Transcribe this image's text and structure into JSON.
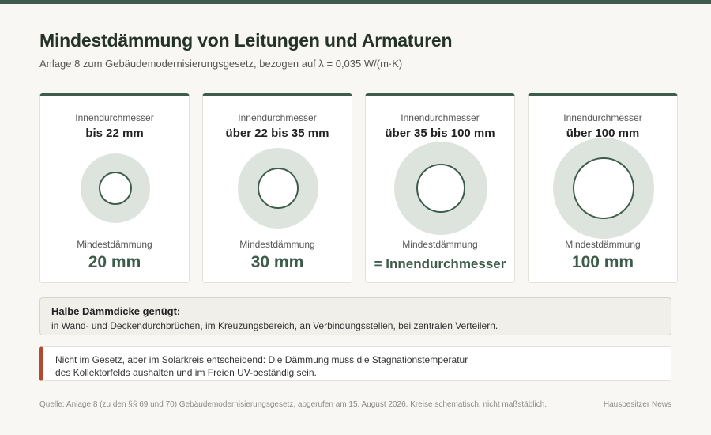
{
  "header": {
    "title": "Mindestdämmung von Leitungen und Armaturen",
    "subtitle": "Anlage 8 zum Gebäudemodernisierungsgesetz, bezogen auf λ = 0,035 W/(m·K)"
  },
  "colors": {
    "accent": "#3d5c4b",
    "ring": "#dde4dd",
    "warning_bar": "#b24a2f"
  },
  "cards": [
    {
      "label_top": "Innendurchmesser",
      "range": "bis 22 mm",
      "label_bottom": "Mindestdämmung",
      "value": "20 mm"
    },
    {
      "label_top": "Innendurchmesser",
      "range": "über 22 bis 35 mm",
      "label_bottom": "Mindestdämmung",
      "value": "30 mm"
    },
    {
      "label_top": "Innendurchmesser",
      "range": "über 35 bis 100 mm",
      "label_bottom": "Mindestdämmung",
      "value": "= Innendurchmesser"
    },
    {
      "label_top": "Innendurchmesser",
      "range": "über 100 mm",
      "label_bottom": "Mindestdämmung",
      "value": "100 mm"
    }
  ],
  "note_half": {
    "heading": "Halbe Dämmdicke genügt:",
    "text": "in Wand- und Deckendurchbrüchen, im Kreuzungsbereich, an Verbindungsstellen, bei zentralen Verteilern."
  },
  "note_solar": {
    "line1": "Nicht im Gesetz, aber im Solarkreis entscheidend: Die Dämmung muss die Stagnationstemperatur",
    "line2": "des Kollektorfelds aushalten und im Freien UV-beständig sein."
  },
  "footer": {
    "source": "Quelle: Anlage 8 (zu den §§ 69 und 70) Gebäudemodernisierungsgesetz, abgerufen am 15. August 2026. Kreise schematisch, nicht maßstäblich.",
    "brand": "Hausbesitzer News"
  }
}
